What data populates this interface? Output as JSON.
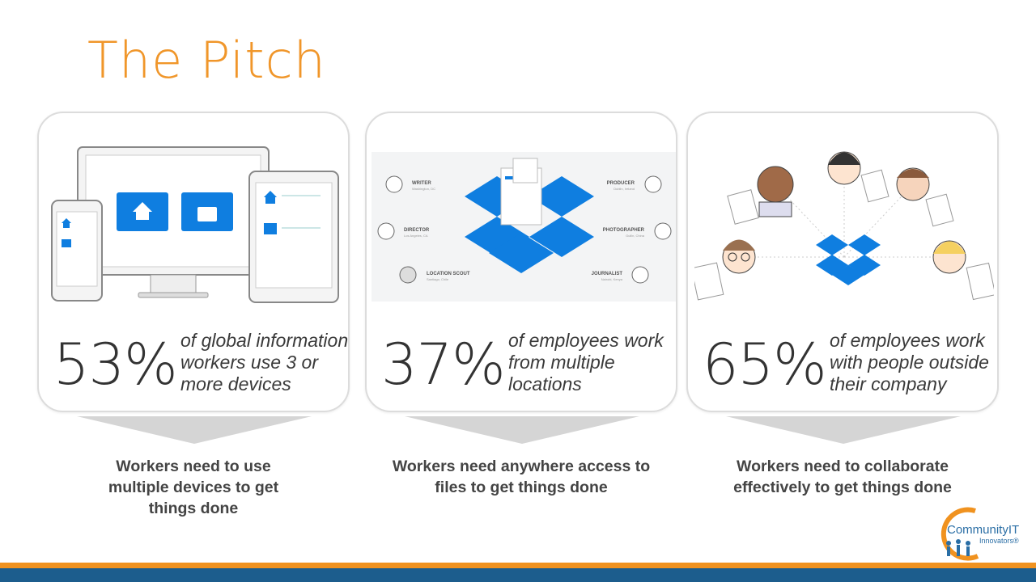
{
  "title": "The Pitch",
  "cards": [
    {
      "percent": "53%",
      "description": "of global information workers use 3 or more devices",
      "caption": "Workers need to use multiple devices to get things done"
    },
    {
      "percent": "37%",
      "description": "of employees work from multiple locations",
      "caption": "Workers need anywhere access to files to get things done",
      "roles": [
        {
          "role": "WRITER",
          "place": "Washington, DC"
        },
        {
          "role": "DIRECTOR",
          "place": "Los Angeles, CA"
        },
        {
          "role": "LOCATION SCOUT",
          "place": "Santiago, Chile"
        },
        {
          "role": "PRODUCER",
          "place": "Dublin, Ireland"
        },
        {
          "role": "PHOTOGRAPHER",
          "place": "Guilin, China"
        },
        {
          "role": "JOURNALIST",
          "place": "Nairobi, Kenya"
        }
      ]
    },
    {
      "percent": "65%",
      "description": "of employees work with people outside their company",
      "caption": "Workers need to collaborate effectively to get things done"
    }
  ],
  "logo": {
    "name": "CommunityIT",
    "sub": "Innovators®"
  },
  "colors": {
    "title": "#f0962a",
    "dropbox_blue": "#0f7ee0",
    "footer_orange": "#f0921f",
    "footer_blue": "#1c5d8d"
  }
}
